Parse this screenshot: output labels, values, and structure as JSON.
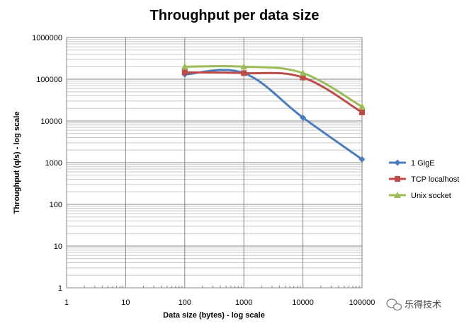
{
  "chart_data": {
    "type": "line",
    "title": "Throughput per data size",
    "xlabel": "Data size (bytes) - log scale",
    "ylabel": "Throughput (q/s) - log scale",
    "x_scale": "log",
    "y_scale": "log",
    "xlim": [
      1,
      100000
    ],
    "ylim": [
      1,
      1000000
    ],
    "x_ticks": [
      "1",
      "10",
      "100",
      "1000",
      "10000",
      "100000"
    ],
    "y_ticks": [
      "1",
      "10",
      "100",
      "1000",
      "10000",
      "100000",
      "1000000"
    ],
    "grid": true,
    "legend_position": "right",
    "x": [
      100,
      1000,
      10000,
      100000
    ],
    "series": [
      {
        "name": "1 GigE",
        "values": [
          130000,
          140000,
          12000,
          1200
        ],
        "color": "#4a7ebb",
        "marker": "diamond"
      },
      {
        "name": "TCP localhost",
        "values": [
          145000,
          140000,
          110000,
          16000
        ],
        "color": "#be4b48",
        "marker": "square"
      },
      {
        "name": "Unix socket",
        "values": [
          200000,
          200000,
          140000,
          22000
        ],
        "color": "#9bbb59",
        "marker": "triangle"
      }
    ]
  },
  "watermark": {
    "text": "乐得技术",
    "icon": "wechat-icon"
  }
}
